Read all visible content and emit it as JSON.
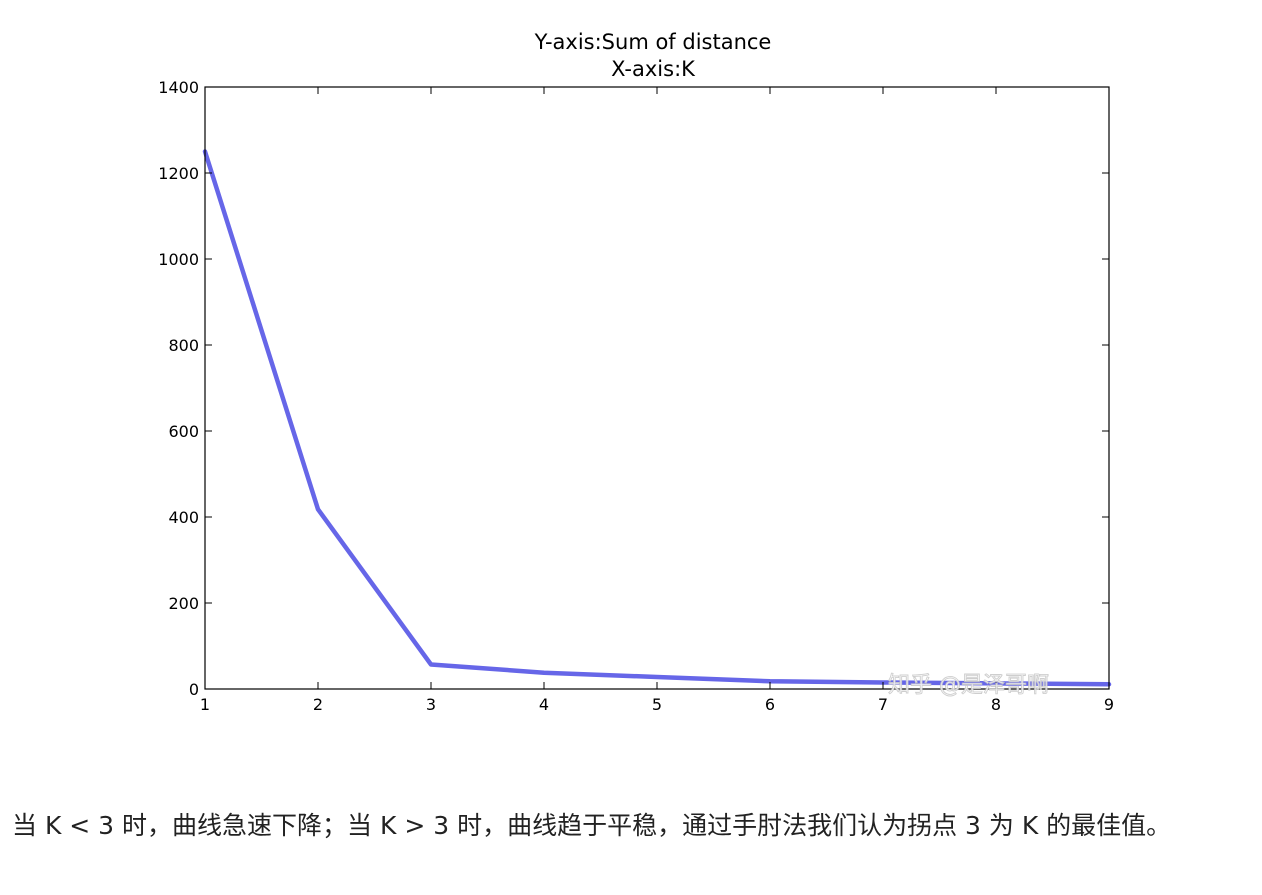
{
  "chart_data": {
    "type": "line",
    "title": "Y-axis:Sum of distance",
    "subtitle": "X-axis:K",
    "xlabel": "",
    "ylabel": "",
    "x": [
      1,
      2,
      3,
      4,
      5,
      6,
      7,
      8,
      9
    ],
    "series": [
      {
        "values": [
          1250,
          418,
          57,
          38,
          28,
          18,
          15,
          13,
          11
        ]
      }
    ],
    "xlim": [
      1,
      9
    ],
    "ylim": [
      0,
      1400
    ],
    "xticks": [
      "1",
      "2",
      "3",
      "4",
      "5",
      "6",
      "7",
      "8",
      "9"
    ],
    "yticks": [
      "0",
      "200",
      "400",
      "600",
      "800",
      "1000",
      "1200",
      "1400"
    ],
    "grid": false,
    "line_color": "#6666e8"
  },
  "watermark": "知乎 @是泽哥啊",
  "caption": "当 K < 3 时，曲线急速下降；当 K > 3 时，曲线趋于平稳，通过手肘法我们认为拐点 3 为 K 的最佳值。"
}
